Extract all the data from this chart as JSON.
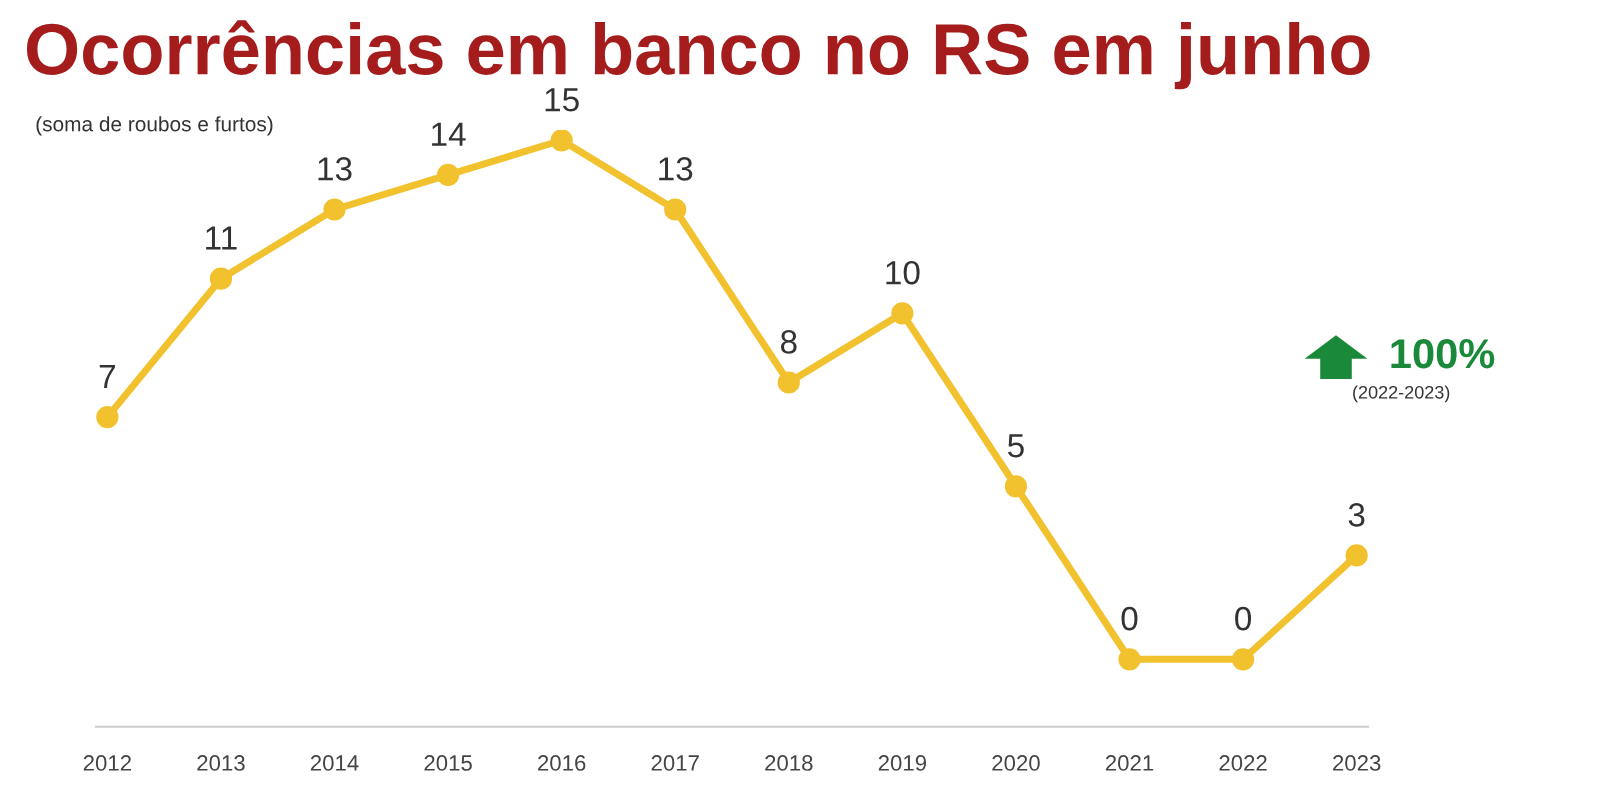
{
  "chart_data": {
    "type": "line",
    "title": "Ocorrências em banco no RS em junho",
    "subtitle": "(soma de roubos e furtos)",
    "categories": [
      "2012",
      "2013",
      "2014",
      "2015",
      "2016",
      "2017",
      "2018",
      "2019",
      "2020",
      "2021",
      "2022",
      "2023"
    ],
    "series": [
      {
        "color": "#f2c12e",
        "values": [
          7,
          11,
          13,
          14,
          15,
          13,
          8,
          10,
          5,
          0,
          0,
          3
        ]
      }
    ],
    "data_labels": true,
    "marker": "circle",
    "line_style": "solid",
    "grid": false,
    "legend": false,
    "annotations": [
      "100%",
      "(2022-2023)"
    ]
  }
}
